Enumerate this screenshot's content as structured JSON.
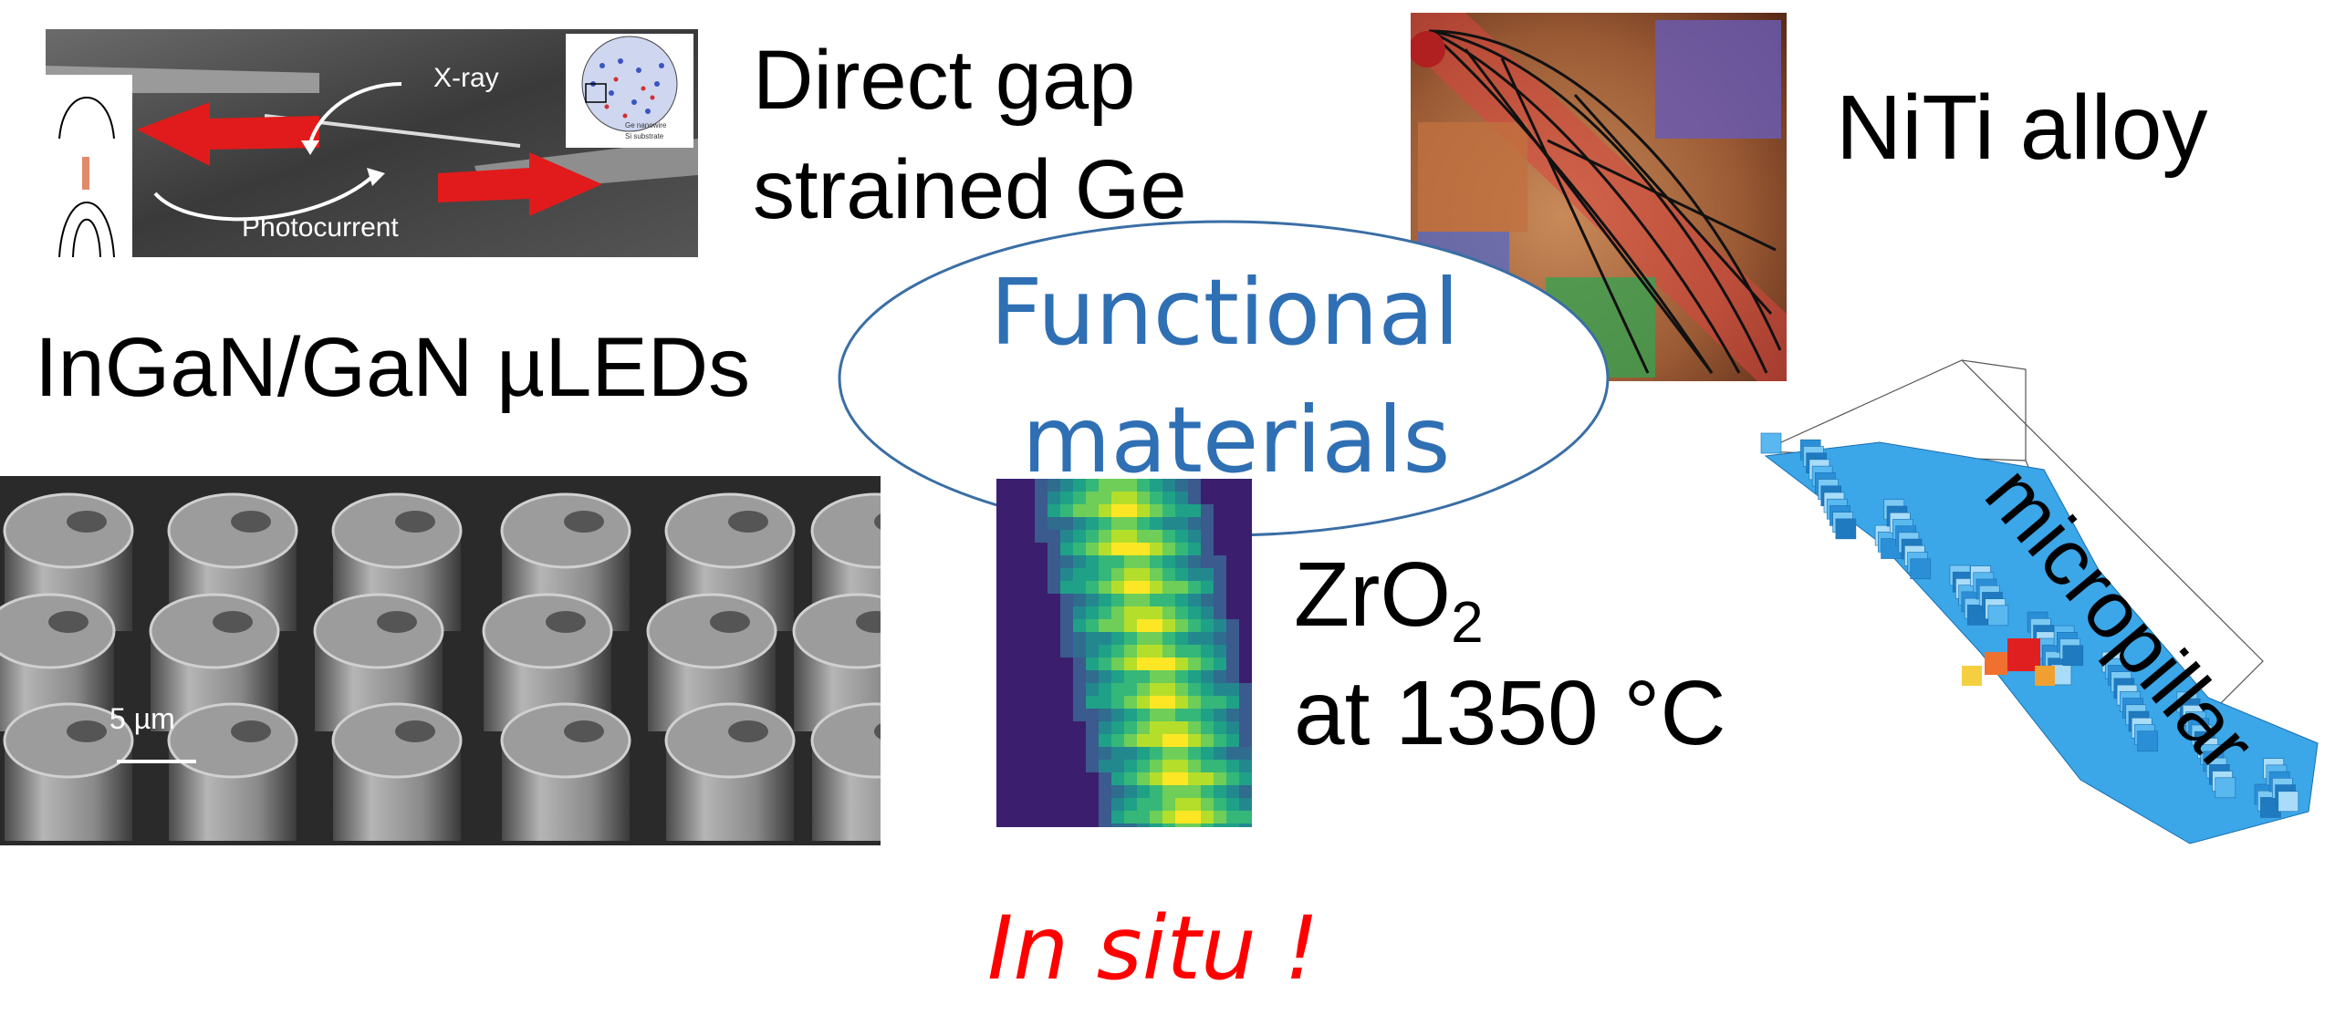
{
  "slide": {
    "title_ellipse": {
      "line1": "Functional",
      "line2": "materials"
    },
    "footer": "In situ !",
    "colors": {
      "title_blue": "#2f6fb4",
      "footer_red": "#ff0000",
      "ellipse_stroke": "#3a6ea5",
      "arrow_red": "#e11b1b"
    }
  },
  "ge_panel": {
    "caption_line1": "Direct gap",
    "caption_line2": "strained Ge",
    "xray_label": "X-ray",
    "photocurrent_label": "Photocurrent",
    "legend": [
      "Ge nanowire",
      "Si substrate"
    ]
  },
  "niti_panel": {
    "caption": "NiTi alloy"
  },
  "uled_panel": {
    "caption": "InGaN/GaN µLEDs",
    "scale_label": "5 µm"
  },
  "zro2_panel": {
    "caption_formula": "ZrO",
    "caption_subscript": "2",
    "caption_line2": "at 1350 °C"
  },
  "pillar_panel": {
    "caption": "micropillar"
  }
}
